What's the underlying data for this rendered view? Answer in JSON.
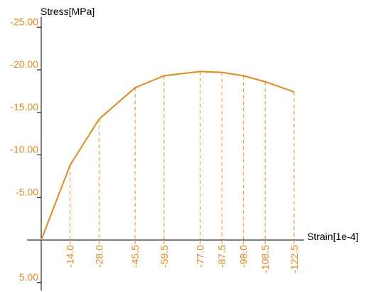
{
  "chart_data": {
    "type": "line",
    "xlabel": "Strain[1e-4]",
    "ylabel": "Stress[MPa]",
    "x_tick_labels": [
      "-14.0",
      "-28.0",
      "-45.5",
      "-59.5",
      "-77.0",
      "-87.5",
      "-98.0",
      "-108.5",
      "-122.5"
    ],
    "y_tick_labels": [
      "-25.00",
      "-20.00",
      "-15.00",
      "-10.00",
      "-5.00",
      "5.00"
    ],
    "y_tick_values": [
      -25,
      -20,
      -15,
      -10,
      -5,
      5
    ],
    "x": [
      0,
      -14.0,
      -28.0,
      -45.5,
      -59.5,
      -77.0,
      -87.5,
      -98.0,
      -108.5,
      -122.5
    ],
    "y": [
      0,
      -8.8,
      -14.2,
      -17.9,
      -19.3,
      -19.8,
      -19.7,
      -19.3,
      -18.6,
      -17.4
    ],
    "xlim": [
      0,
      -130
    ],
    "ylim": [
      6,
      -27
    ],
    "grid": false,
    "colors": {
      "series": "#e08a1e",
      "tick_text": "#e08a1e",
      "axis": "#000000"
    }
  }
}
